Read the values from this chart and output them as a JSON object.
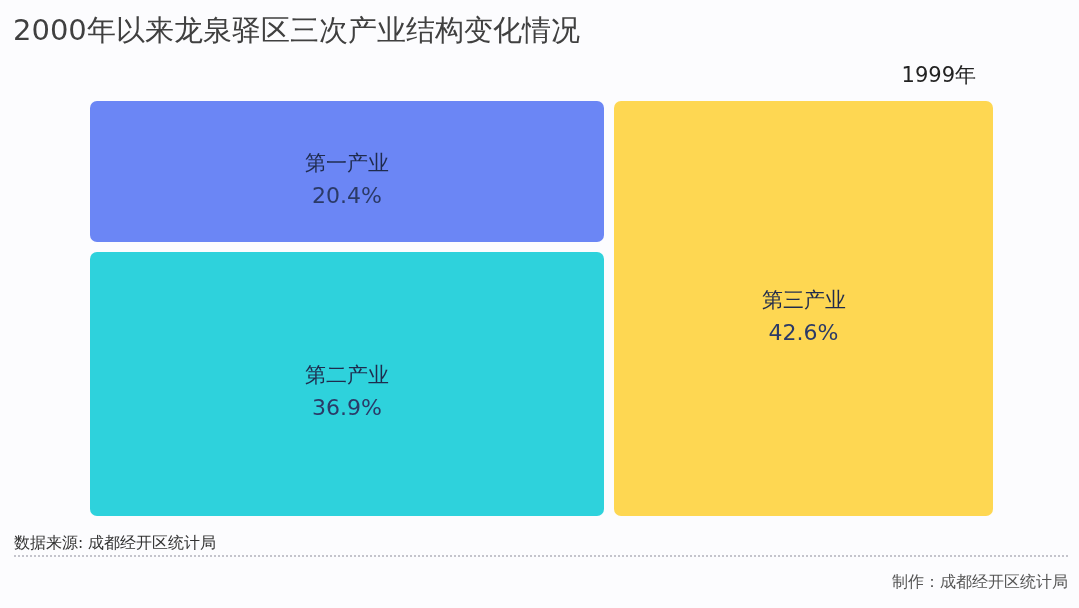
{
  "chart_data": {
    "type": "other",
    "title": "2000年以来龙泉驿区三次产业结构变化情况",
    "subtitle": "1999年",
    "categories": [
      "第一产业",
      "第二产业",
      "第三产业"
    ],
    "values": [
      20.4,
      36.9,
      42.6
    ],
    "value_labels": [
      "20.4%",
      "36.9%",
      "42.6%"
    ],
    "colors": [
      "#6b86f5",
      "#2ed2dc",
      "#fed752"
    ],
    "annotations": [
      "数据来源: 成都经开区统计局",
      "制作：成都经开区统计局"
    ]
  }
}
